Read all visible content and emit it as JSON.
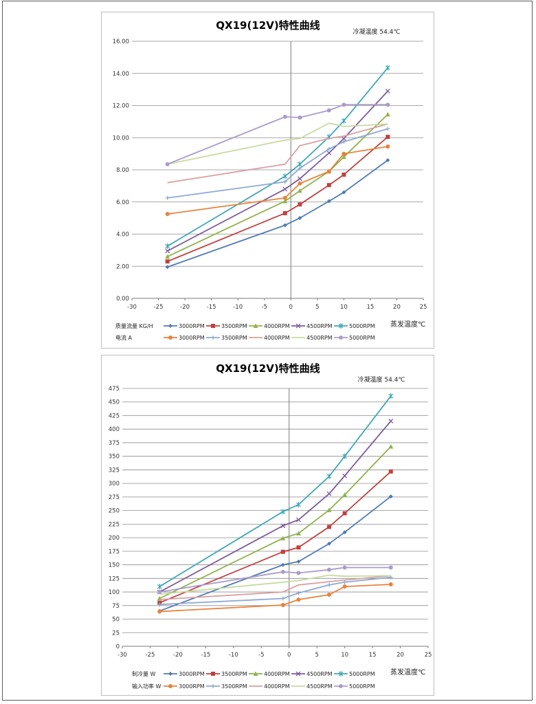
{
  "chart_data": [
    {
      "type": "line",
      "title": "QX19(12V)特性曲线",
      "annotation": "冷凝温度 54.4℃",
      "xlabel": "蒸发温度℃",
      "ylabel": "",
      "xlim": [
        -30,
        25
      ],
      "ylim": [
        0,
        16
      ],
      "x_ticks": [
        "-30",
        "-25",
        "-20",
        "-15",
        "-10",
        "-5",
        "0",
        "5",
        "10",
        "15",
        "20",
        "25"
      ],
      "y_ticks": [
        "0.00",
        "2.00",
        "4.00",
        "6.00",
        "8.00",
        "10.00",
        "12.00",
        "14.00",
        "16.00"
      ],
      "grid": true,
      "legend_groups": [
        {
          "label": "质量流量  KG/H",
          "series": [
            0,
            1,
            2,
            3,
            4
          ]
        },
        {
          "label": "电流 A",
          "series": [
            5,
            6,
            7,
            8,
            9
          ]
        }
      ],
      "series": [
        {
          "name": "3000RPM",
          "color": "#4f7bb5",
          "marker": "diamond",
          "x": [
            -23.3,
            -1.1,
            1.7,
            7.2,
            10,
            18.3
          ],
          "y": [
            1.95,
            4.55,
            5.0,
            6.05,
            6.6,
            8.6
          ]
        },
        {
          "name": "3500RPM",
          "color": "#c0413e",
          "marker": "square",
          "x": [
            -23.3,
            -1.1,
            1.7,
            7.2,
            10,
            18.3
          ],
          "y": [
            2.3,
            5.3,
            5.85,
            7.05,
            7.7,
            10.05
          ]
        },
        {
          "name": "4000RPM",
          "color": "#8eb34b",
          "marker": "triangle",
          "x": [
            -23.3,
            -1.1,
            1.7,
            7.2,
            10,
            18.3
          ],
          "y": [
            2.6,
            6.05,
            6.7,
            7.9,
            8.8,
            11.45
          ]
        },
        {
          "name": "4500RPM",
          "color": "#7d5a9e",
          "marker": "x",
          "x": [
            -23.3,
            -1.1,
            1.7,
            7.2,
            10,
            18.3
          ],
          "y": [
            2.95,
            6.8,
            7.45,
            9.05,
            9.95,
            12.9
          ]
        },
        {
          "name": "5000RPM",
          "color": "#3fa6b8",
          "marker": "asterisk",
          "x": [
            -23.3,
            -1.1,
            1.7,
            7.2,
            10,
            18.3
          ],
          "y": [
            3.25,
            7.6,
            8.35,
            10.05,
            11.05,
            14.35
          ]
        },
        {
          "name": "3000RPM",
          "color": "#e8823a",
          "marker": "circle",
          "x": [
            -23.3,
            -1.1,
            1.7,
            7.2,
            10,
            18.3
          ],
          "y": [
            5.25,
            6.25,
            7.15,
            7.9,
            9.0,
            9.45
          ]
        },
        {
          "name": "3500RPM",
          "color": "#8ca8d4",
          "marker": "plus",
          "x": [
            -23.3,
            -1.1,
            1.7,
            7.2,
            10,
            18.3
          ],
          "y": [
            6.25,
            7.25,
            8.1,
            9.3,
            9.75,
            10.55
          ]
        },
        {
          "name": "4000RPM",
          "color": "#dba0a0",
          "marker": "none",
          "x": [
            -23.3,
            -1.1,
            1.7,
            7.2,
            10,
            18.3
          ],
          "y": [
            7.2,
            8.35,
            9.5,
            9.95,
            10.1,
            10.85
          ]
        },
        {
          "name": "4500RPM",
          "color": "#c5dba0",
          "marker": "none",
          "x": [
            -23.3,
            -1.1,
            1.7,
            7.2,
            10,
            18.3
          ],
          "y": [
            8.35,
            9.85,
            9.95,
            10.9,
            10.7,
            10.85
          ]
        },
        {
          "name": "5000RPM",
          "color": "#ab9bca",
          "marker": "circle",
          "x": [
            -23.3,
            -1.1,
            1.7,
            7.2,
            10,
            18.3
          ],
          "y": [
            8.35,
            11.3,
            11.25,
            11.7,
            12.05,
            12.05
          ]
        }
      ]
    },
    {
      "type": "line",
      "title": "QX19(12V)特性曲线",
      "annotation": "冷凝温度 54.4℃",
      "xlabel": "蒸发温度℃",
      "ylabel": "",
      "xlim": [
        -30,
        25
      ],
      "ylim": [
        0,
        475
      ],
      "x_ticks": [
        "-30",
        "-25",
        "-20",
        "-15",
        "-10",
        "-5",
        "0",
        "5",
        "10",
        "15",
        "20",
        "25"
      ],
      "y_ticks": [
        "0",
        "25",
        "50",
        "75",
        "100",
        "125",
        "150",
        "175",
        "200",
        "225",
        "250",
        "275",
        "300",
        "325",
        "350",
        "375",
        "400",
        "425",
        "450",
        "475"
      ],
      "grid": true,
      "legend_groups": [
        {
          "label": "制冷量 W",
          "series": [
            0,
            1,
            2,
            3,
            4
          ]
        },
        {
          "label": "输入功率 W",
          "series": [
            5,
            6,
            7,
            8,
            9
          ]
        }
      ],
      "series": [
        {
          "name": "3000RPM",
          "color": "#4f7bb5",
          "marker": "diamond",
          "x": [
            -23.3,
            -1.1,
            1.7,
            7.2,
            10,
            18.3
          ],
          "y": [
            65,
            150,
            156,
            189,
            210,
            276
          ]
        },
        {
          "name": "3500RPM",
          "color": "#c0413e",
          "marker": "square",
          "x": [
            -23.3,
            -1.1,
            1.7,
            7.2,
            10,
            18.3
          ],
          "y": [
            80,
            174,
            182,
            220,
            245,
            322
          ]
        },
        {
          "name": "4000RPM",
          "color": "#8eb34b",
          "marker": "triangle",
          "x": [
            -23.3,
            -1.1,
            1.7,
            7.2,
            10,
            18.3
          ],
          "y": [
            88,
            199,
            208,
            251,
            279,
            368
          ]
        },
        {
          "name": "4500RPM",
          "color": "#7d5a9e",
          "marker": "x",
          "x": [
            -23.3,
            -1.1,
            1.7,
            7.2,
            10,
            18.3
          ],
          "y": [
            100,
            222,
            233,
            281,
            314,
            415
          ]
        },
        {
          "name": "5000RPM",
          "color": "#3fa6b8",
          "marker": "asterisk",
          "x": [
            -23.3,
            -1.1,
            1.7,
            7.2,
            10,
            18.3
          ],
          "y": [
            110,
            248,
            261,
            313,
            350,
            461
          ]
        },
        {
          "name": "3000RPM",
          "color": "#e8823a",
          "marker": "circle",
          "x": [
            -23.3,
            -1.1,
            1.7,
            7.2,
            10,
            18.3
          ],
          "y": [
            64,
            76,
            86,
            95,
            110,
            114
          ]
        },
        {
          "name": "3500RPM",
          "color": "#8ca8d4",
          "marker": "plus",
          "x": [
            -23.3,
            -1.1,
            1.7,
            7.2,
            10,
            18.3
          ],
          "y": [
            77,
            88,
            98,
            113,
            118,
            127
          ]
        },
        {
          "name": "4000RPM",
          "color": "#dba0a0",
          "marker": "none",
          "x": [
            -23.3,
            -1.1,
            1.7,
            7.2,
            10,
            18.3
          ],
          "y": [
            86,
            100,
            113,
            119,
            122,
            130
          ]
        },
        {
          "name": "4500RPM",
          "color": "#c5dba0",
          "marker": "none",
          "x": [
            -23.3,
            -1.1,
            1.7,
            7.2,
            10,
            18.3
          ],
          "y": [
            96,
            118,
            121,
            131,
            129,
            130
          ]
        },
        {
          "name": "5000RPM",
          "color": "#ab9bca",
          "marker": "circle",
          "x": [
            -23.3,
            -1.1,
            1.7,
            7.2,
            10,
            18.3
          ],
          "y": [
            100,
            137,
            135,
            141,
            145,
            145
          ]
        }
      ]
    }
  ]
}
